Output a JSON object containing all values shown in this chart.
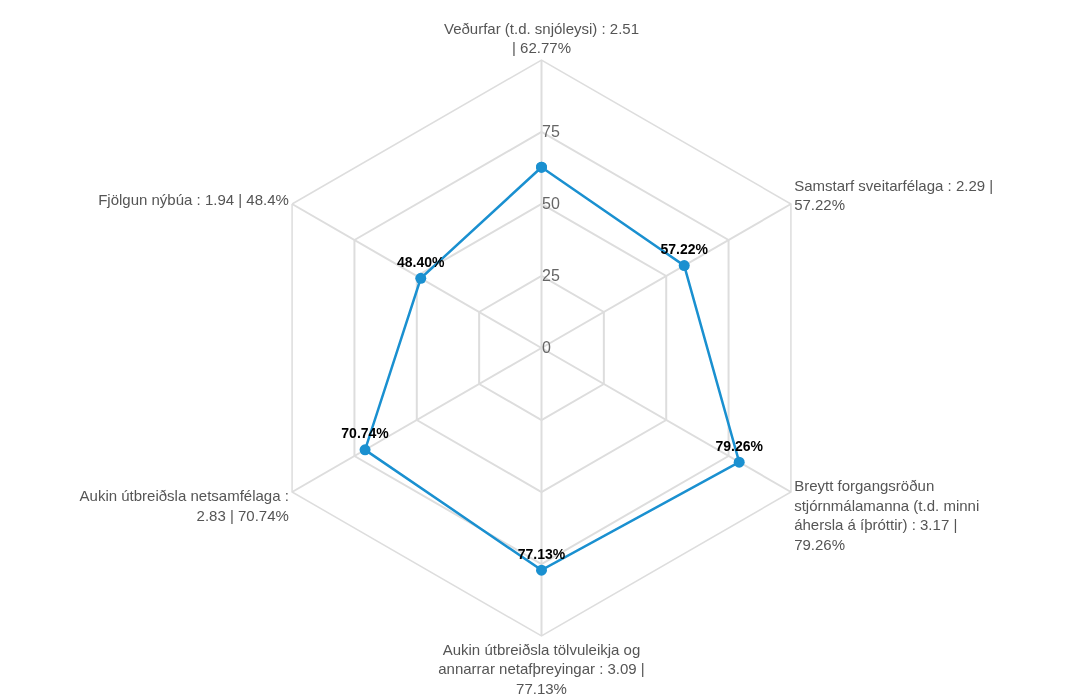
{
  "chart_data": {
    "type": "radar",
    "categories": [
      "Veðurfar (t.d. snjóleysi) : 2.51 | 62.77%",
      "Samstarf sveitarfélaga : 2.29 | 57.22%",
      "Breytt forgangsröðun stjórnmálamanna (t.d. minni áhersla á íþróttir) : 3.17 | 79.26%",
      "Aukin útbreiðsla tölvuleikja og annarrar netafþreyingar : 3.09 | 77.13%",
      "Aukin útbreiðsla netsamfélaga : 2.83 | 70.74%",
      "Fjölgun nýbúa : 1.94 | 48.4%"
    ],
    "series": [
      {
        "color": "#1a90d0",
        "values": [
          62.77,
          57.22,
          79.26,
          77.13,
          70.74,
          48.4
        ],
        "value_labels": [
          null,
          "57.22%",
          "79.26%",
          "77.13%",
          "70.74%",
          "48.40%"
        ]
      }
    ],
    "ylim": [
      0,
      100
    ],
    "yticks": [
      0,
      25,
      50,
      75
    ],
    "grid": true,
    "marker": "circle",
    "line_style": "solid"
  }
}
